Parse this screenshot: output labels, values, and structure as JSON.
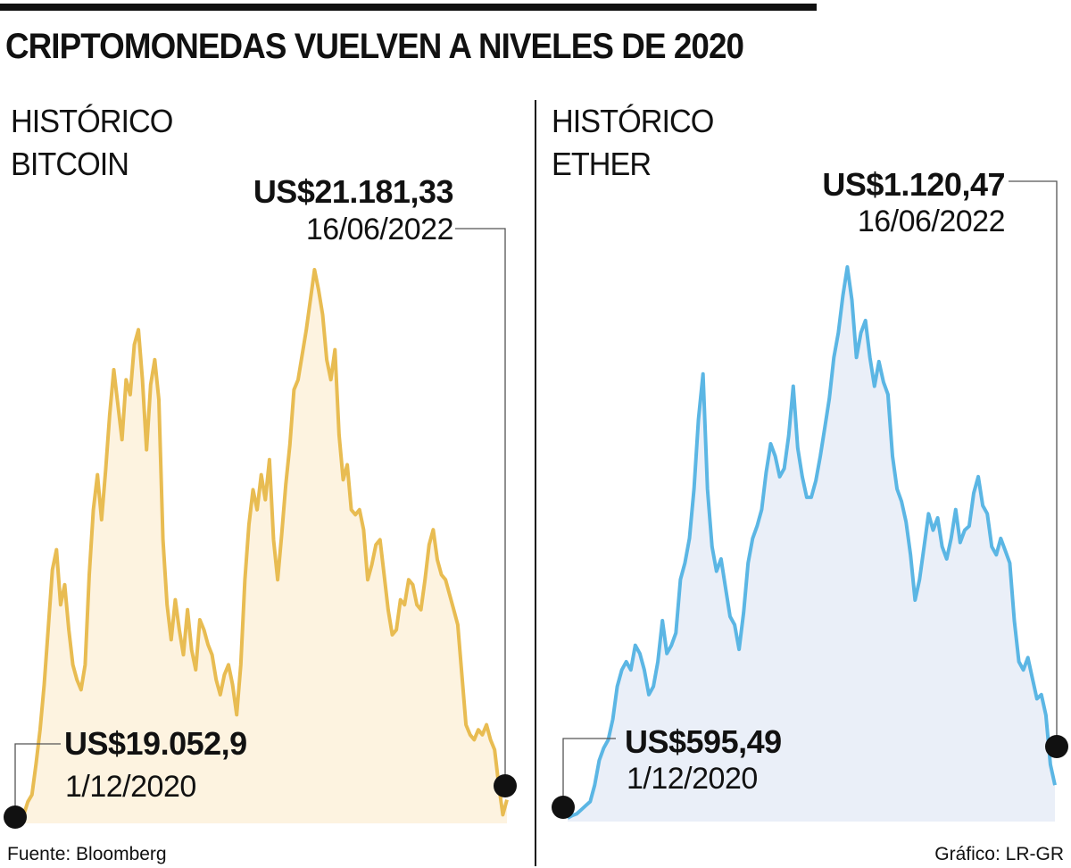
{
  "title": "CRIPTOMONEDAS VUELVEN A NIVELES DE 2020",
  "source": "Fuente: Bloomberg",
  "credit": "Gráfico: LR-GR",
  "colors": {
    "bitcoin_line": "#E8BC52",
    "bitcoin_fill": "#FDF3E0",
    "ether_line": "#5BB6E4",
    "ether_fill": "#EAEFF8",
    "marker": "#111111"
  },
  "chart_data": [
    {
      "type": "area",
      "title_lines": [
        "HISTÓRICO",
        "BITCOIN"
      ],
      "series_name": "Bitcoin",
      "x_start": "1/12/2020",
      "x_end": "16/06/2022",
      "start_label": {
        "value": "US$19.052,9",
        "date": "1/12/2020"
      },
      "end_label": {
        "value": "US$21.181,33",
        "date": "16/06/2022"
      },
      "relative_index": [
        0.0,
        0.5,
        1.8,
        2.5,
        5.6,
        9.0,
        13.5,
        19.2,
        25.0,
        27.0,
        21.5,
        23.5,
        19.0,
        15.5,
        14.0,
        13.0,
        15.5,
        24.5,
        31.0,
        34.5,
        30.0,
        35.0,
        40.5,
        45.0,
        41.5,
        38.0,
        44.0,
        42.5,
        47.5,
        49.0,
        44.0,
        37.0,
        43.5,
        46.0,
        42.0,
        28.0,
        21.5,
        18.0,
        22.0,
        19.0,
        16.5,
        21.0,
        17.0,
        15.0,
        20.0,
        19.0,
        17.5,
        16.5,
        14.0,
        12.5,
        14.5,
        15.5,
        13.5,
        10.5,
        15.5,
        24.0,
        29.5,
        33.0,
        31.0,
        34.5,
        32.0,
        36.0,
        28.0,
        24.0,
        28.5,
        33.5,
        37.5,
        43.0,
        44.0,
        46.5,
        49.0,
        52.0,
        55.0,
        53.0,
        50.5,
        46.0,
        44.0,
        47.0,
        38.5,
        34.0,
        35.5,
        31.0,
        30.5,
        31.0,
        29.0,
        24.0,
        25.5,
        27.5,
        28.0,
        24.5,
        21.0,
        18.5,
        19.0,
        22.0,
        21.5,
        24.0,
        23.5,
        21.5,
        21.0,
        24.0,
        27.5,
        29.0,
        26.0,
        24.5,
        24.0,
        22.5,
        21.0,
        19.5,
        14.5,
        9.5,
        8.5,
        8.0,
        9.0,
        8.5,
        9.5,
        8.0,
        7.0,
        3.5,
        0.5,
        2.0
      ]
    },
    {
      "type": "area",
      "title_lines": [
        "HISTÓRICO",
        "ETHER"
      ],
      "series_name": "Ether",
      "x_start": "1/12/2020",
      "x_end": "16/06/2022",
      "start_label": {
        "value": "US$595,49",
        "date": "1/12/2020"
      },
      "end_label": {
        "value": "US$1.120,47",
        "date": "16/06/2022"
      },
      "relative_index": [
        0.0,
        0.3,
        0.5,
        1.0,
        1.5,
        2.0,
        4.0,
        7.0,
        8.5,
        9.5,
        12.0,
        16.0,
        18.0,
        19.0,
        18.0,
        21.0,
        20.0,
        18.0,
        15.0,
        16.0,
        19.0,
        24.0,
        20.0,
        21.0,
        22.5,
        29.0,
        31.0,
        34.0,
        40.0,
        48.5,
        54.0,
        40.0,
        33.0,
        30.0,
        31.5,
        28.0,
        24.5,
        23.5,
        20.5,
        25.0,
        31.0,
        34.0,
        35.5,
        37.5,
        42.0,
        45.5,
        44.0,
        41.5,
        42.5,
        46.5,
        52.5,
        45.0,
        41.5,
        39.0,
        39.0,
        41.0,
        44.0,
        47.5,
        51.0,
        56.0,
        59.0,
        63.5,
        67.0,
        63.0,
        56.0,
        59.0,
        60.5,
        56.0,
        52.5,
        55.5,
        53.0,
        51.5,
        44.0,
        40.0,
        38.5,
        36.0,
        32.0,
        26.5,
        29.0,
        33.0,
        37.0,
        35.0,
        36.5,
        33.0,
        31.5,
        34.0,
        37.5,
        33.5,
        35.0,
        35.5,
        39.5,
        41.5,
        38.0,
        37.0,
        33.0,
        32.0,
        34.0,
        32.5,
        31.0,
        24.0,
        19.0,
        18.0,
        19.5,
        17.0,
        14.5,
        15.0,
        12.5,
        6.5,
        4.0
      ]
    }
  ]
}
